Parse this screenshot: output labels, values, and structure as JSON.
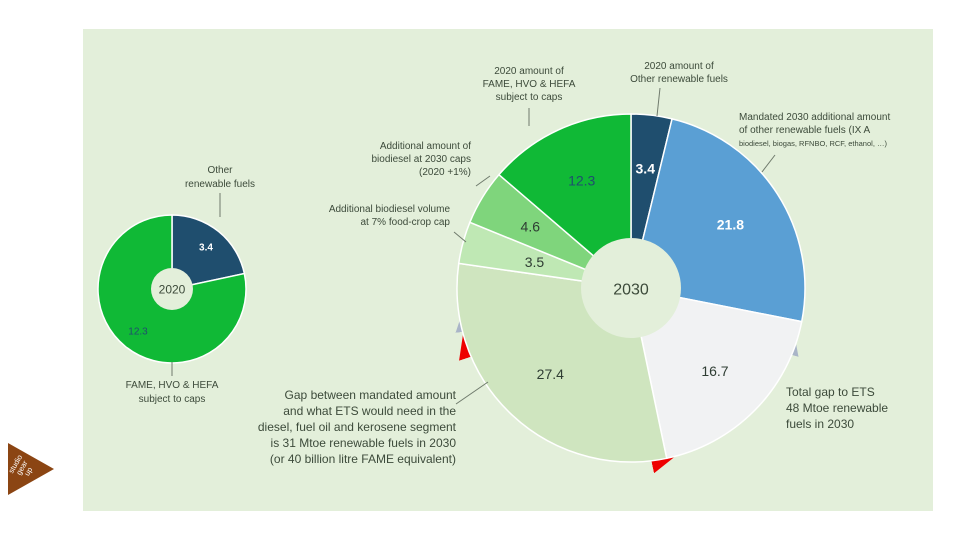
{
  "chart_data": [
    {
      "type": "pie",
      "variant": "donut",
      "center_label": "2020",
      "slices": [
        {
          "value": 3.4,
          "label": "3.4",
          "annotation": [
            "Other",
            "renewable fuels"
          ],
          "color": "#1f4e6e"
        },
        {
          "value": 12.3,
          "label": "12.3",
          "annotation": [
            "FAME, HVO & HEFA",
            "subject to caps"
          ],
          "color": "#10b936"
        }
      ]
    },
    {
      "type": "pie",
      "variant": "donut",
      "center_label": "2030",
      "slices": [
        {
          "value": 3.4,
          "label": "3.4",
          "annotation": [
            "2020 amount of",
            "Other renewable fuels"
          ],
          "color": "#1f4e6e"
        },
        {
          "value": 21.8,
          "label": "21.8",
          "annotation": [
            "Mandated 2030 additional amount",
            "of other renewable fuels (IX A",
            "biodiesel, biogas,  RFNBO, RCF, ethanol, …)"
          ],
          "color": "#5a9fd4"
        },
        {
          "value": 16.7,
          "label": "16.7",
          "annotation": [],
          "color": "#f1f2f3"
        },
        {
          "value": 27.4,
          "label": "27.4",
          "annotation": [],
          "color": "#cfe5bf"
        },
        {
          "value": 3.5,
          "label": "3.5",
          "annotation": [
            "Additional biodiesel volume",
            "at 7% food-crop cap"
          ],
          "color": "#bfe8b4"
        },
        {
          "value": 4.6,
          "label": "4.6",
          "annotation": [
            "Additional amount of",
            "biodiesel at 2030 caps",
            "(2020 +1%)"
          ],
          "color": "#7fd57c"
        },
        {
          "value": 12.3,
          "label": "12.3",
          "annotation": [
            "2020 amount of",
            "FAME, HVO & HEFA",
            "subject to caps"
          ],
          "color": "#10b936"
        }
      ]
    }
  ],
  "callouts": {
    "gap_mandated": [
      "Gap between mandated amount",
      "and what ETS would need in the",
      "diesel, fuel oil and kerosene segment",
      "is 31 Mtoe renewable fuels in 2030",
      "(or 40 billion litre FAME equivalent)"
    ],
    "gap_ets": [
      "Total gap to ETS",
      "48 Mtoe renewable",
      "fuels in 2030"
    ]
  },
  "colors": {
    "panel_bg": "#e3efda",
    "gap_red": "#ee0000",
    "gap_grey": "#aab5c8",
    "logo_brown": "#8b4513"
  },
  "logo_text": [
    "studio",
    "gear",
    "up"
  ]
}
